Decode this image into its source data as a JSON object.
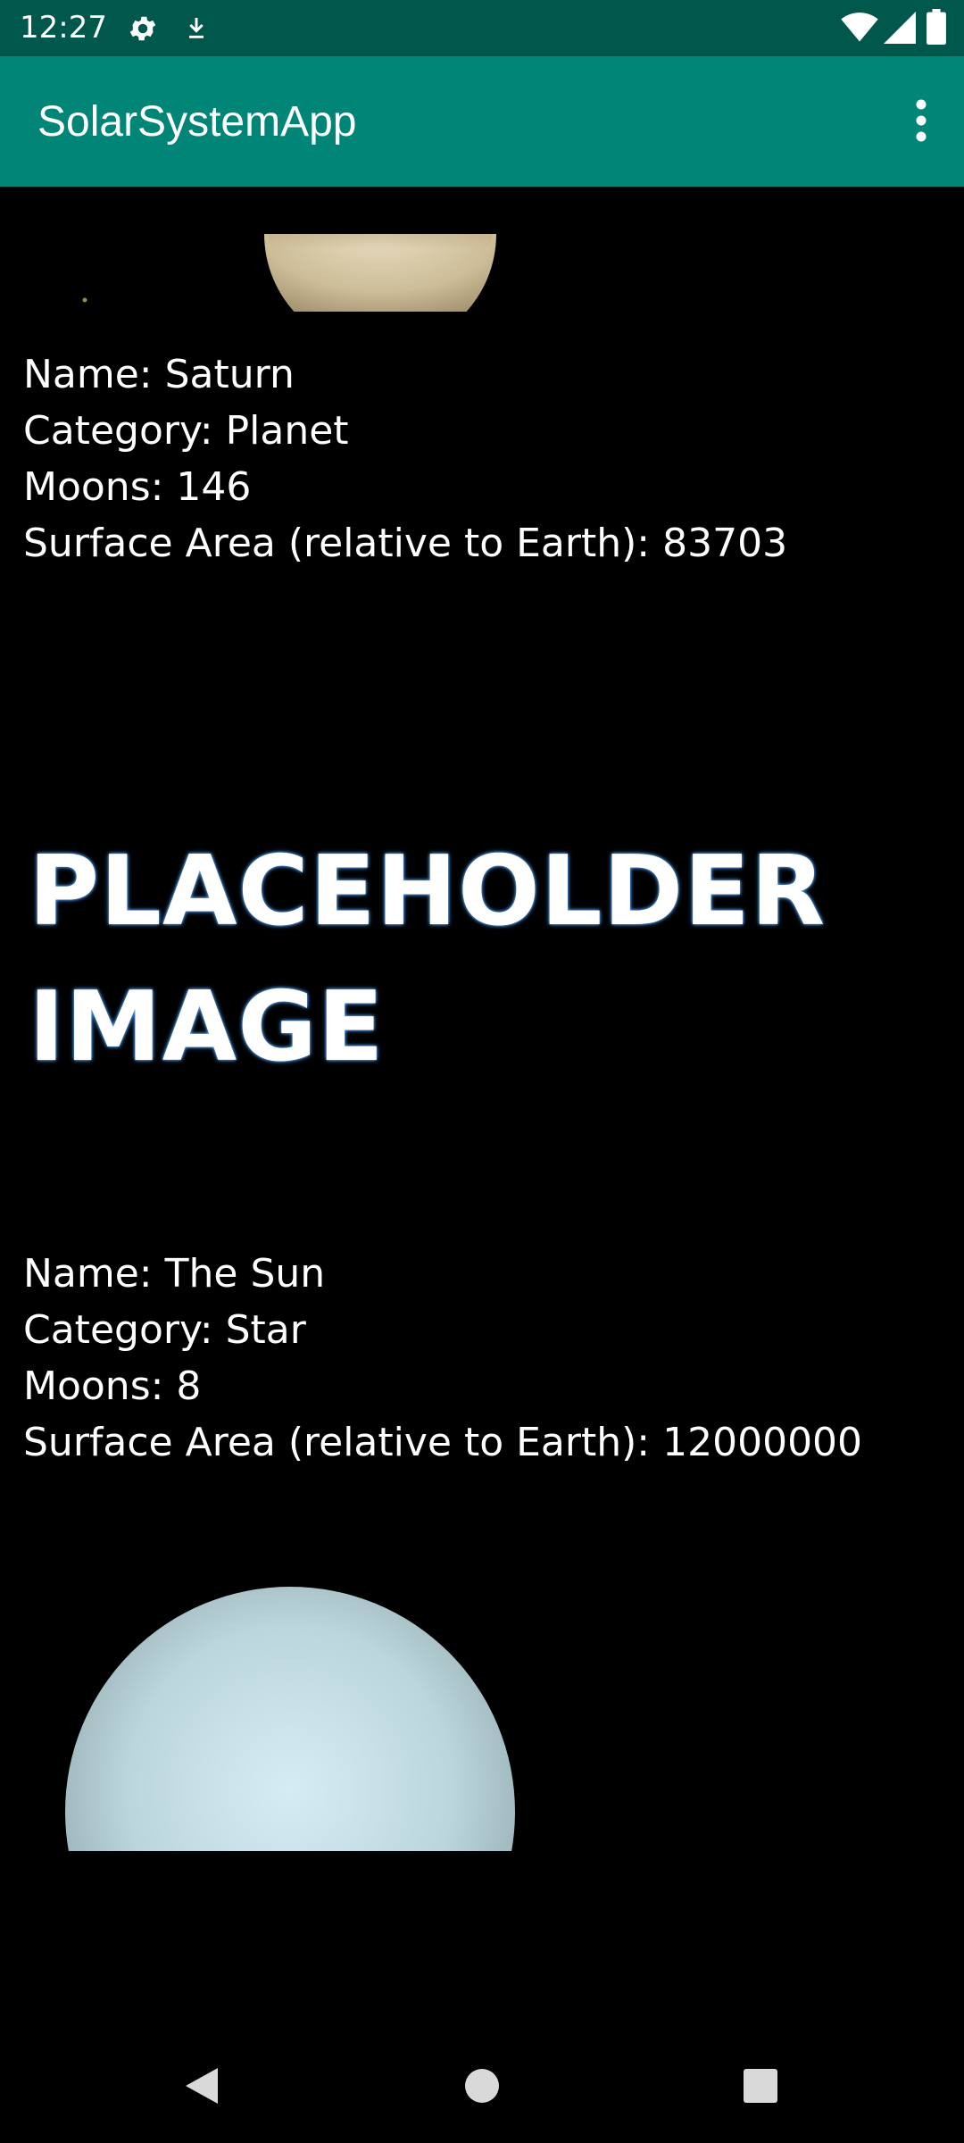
{
  "status_bar": {
    "time": "12:27",
    "icons_left": [
      "gear-icon",
      "download-icon"
    ],
    "icons_right": [
      "wifi-icon",
      "signal-icon",
      "battery-icon"
    ]
  },
  "app_bar": {
    "title": "SolarSystemApp",
    "overflow_icon": "more-vert-icon"
  },
  "items": [
    {
      "image": "saturn-image",
      "name_line": "Name: Saturn",
      "category_line": "Category: Planet",
      "moons_line": "Moons: 146",
      "surface_line": "Surface Area (relative to Earth): 83703"
    },
    {
      "image": "placeholder-image",
      "placeholder_line1": "PLACEHOLDER",
      "placeholder_line2": "IMAGE",
      "name_line": "Name: The Sun",
      "category_line": "Category: Star",
      "moons_line": "Moons: 8",
      "surface_line": "Surface Area (relative to Earth): 12000000"
    },
    {
      "image": "uranus-image"
    }
  ],
  "nav_bar": {
    "buttons": [
      "back-icon",
      "home-icon",
      "recents-icon"
    ]
  },
  "colors": {
    "status_bar": "#00574b",
    "app_bar": "#008577",
    "background": "#000000",
    "text": "#ffffff"
  }
}
